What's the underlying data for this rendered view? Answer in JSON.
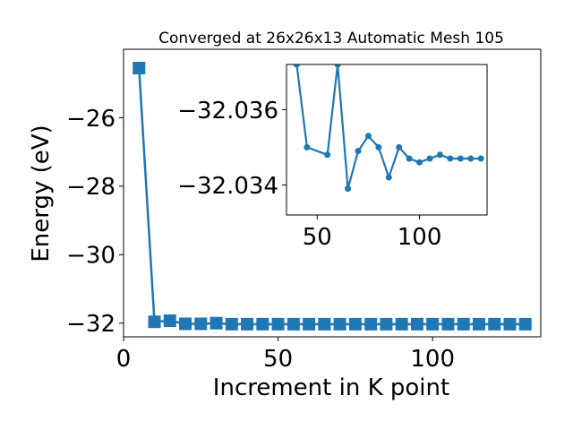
{
  "colors": {
    "series": "#1f77b4",
    "axis": "#000000",
    "background": "#ffffff"
  },
  "chart_data": [
    {
      "type": "line",
      "title": "Converged at 26x26x13 Automatic Mesh 105",
      "xlabel": "Increment in K point",
      "ylabel": "Energy (eV)",
      "xlim": [
        0,
        135
      ],
      "ylim": [
        -32.4,
        -24.0
      ],
      "xticks": [
        0,
        50,
        100
      ],
      "yticks": [
        -26,
        -28,
        -30,
        -32
      ],
      "marker": "square",
      "grid": false,
      "series": [
        {
          "x": [
            5,
            10,
            15,
            20,
            25,
            30,
            35,
            40,
            45,
            50,
            55,
            60,
            65,
            70,
            75,
            80,
            85,
            90,
            95,
            100,
            105,
            110,
            115,
            120,
            125,
            130
          ],
          "y": [
            -24.55,
            -31.96,
            -31.93,
            -32.02,
            -32.02,
            -32.0,
            -32.03,
            -32.03,
            -32.03,
            -32.03,
            -32.03,
            -32.03,
            -32.03,
            -32.03,
            -32.03,
            -32.03,
            -32.03,
            -32.03,
            -32.03,
            -32.03,
            -32.03,
            -32.03,
            -32.03,
            -32.03,
            -32.03,
            -32.03
          ]
        }
      ]
    },
    {
      "type": "line",
      "role": "inset",
      "xlim": [
        35,
        133
      ],
      "ylim": [
        -32.0332,
        -32.0372
      ],
      "xticks": [
        50,
        100
      ],
      "yticks": [
        -32.036,
        -32.034
      ],
      "marker": "circle",
      "grid": false,
      "series": [
        {
          "x": [
            40,
            45,
            55,
            60,
            65,
            70,
            75,
            80,
            85,
            90,
            95,
            100,
            105,
            110,
            115,
            120,
            125,
            130
          ],
          "y": [
            -32.0372,
            -32.035,
            -32.0348,
            -32.0372,
            -32.0339,
            -32.0349,
            -32.0353,
            -32.035,
            -32.0342,
            -32.035,
            -32.0347,
            -32.0346,
            -32.0347,
            -32.0348,
            -32.0347,
            -32.0347,
            -32.0347,
            -32.0347
          ]
        }
      ]
    }
  ]
}
